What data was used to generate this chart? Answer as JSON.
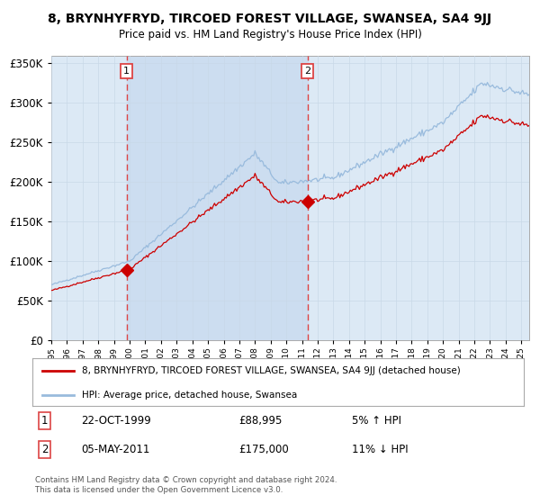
{
  "title": "8, BRYNHYFRYD, TIRCOED FOREST VILLAGE, SWANSEA, SA4 9JJ",
  "subtitle": "Price paid vs. HM Land Registry's House Price Index (HPI)",
  "legend_red": "8, BRYNHYFRYD, TIRCOED FOREST VILLAGE, SWANSEA, SA4 9JJ (detached house)",
  "legend_blue": "HPI: Average price, detached house, Swansea",
  "marker1_date": "22-OCT-1999",
  "marker1_price": 88995,
  "marker1_label": "£88,995",
  "marker1_pct": "5% ↑ HPI",
  "marker2_date": "05-MAY-2011",
  "marker2_price": 175000,
  "marker2_label": "£175,000",
  "marker2_pct": "11% ↓ HPI",
  "purchase1_year": 1999.81,
  "purchase2_year": 2011.35,
  "ylim": [
    0,
    360000
  ],
  "xlim_start": 1995.0,
  "xlim_end": 2025.5,
  "bg_color": "#dce9f5",
  "grid_color": "#c8d8e8",
  "red_color": "#cc0000",
  "blue_color": "#99bbdd",
  "vline_color": "#dd4444",
  "footnote": "Contains HM Land Registry data © Crown copyright and database right 2024.\nThis data is licensed under the Open Government Licence v3.0."
}
